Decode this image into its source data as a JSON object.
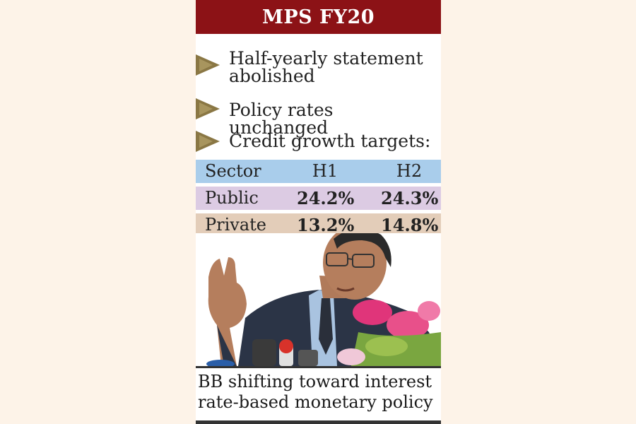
{
  "title": "MPS FY20",
  "bullets": [
    {
      "line1": "Half-yearly statement",
      "line2": "abolished"
    },
    {
      "line1": "Policy rates unchanged"
    },
    {
      "line1": "Credit growth targets:"
    }
  ],
  "table": {
    "headers": [
      "Sector",
      "H1",
      "H2"
    ],
    "rows": [
      {
        "sector": "Public",
        "h1": "24.2%",
        "h2": "24.3%"
      },
      {
        "sector": "Private",
        "h1": "13.2%",
        "h2": "14.8%"
      }
    ],
    "colors": {
      "header": "#a9cdeb",
      "public": "#dccbe3",
      "private": "#e3cdb9"
    }
  },
  "photo": {
    "subject": "person-speaking-at-press-conference"
  },
  "caption": {
    "line1": "BB shifting toward interest",
    "line2": "rate-based monetary policy"
  },
  "colors": {
    "title_bg": "#8c1216",
    "arrow": "#8a7744",
    "page_bg": "#fdf3e8"
  }
}
